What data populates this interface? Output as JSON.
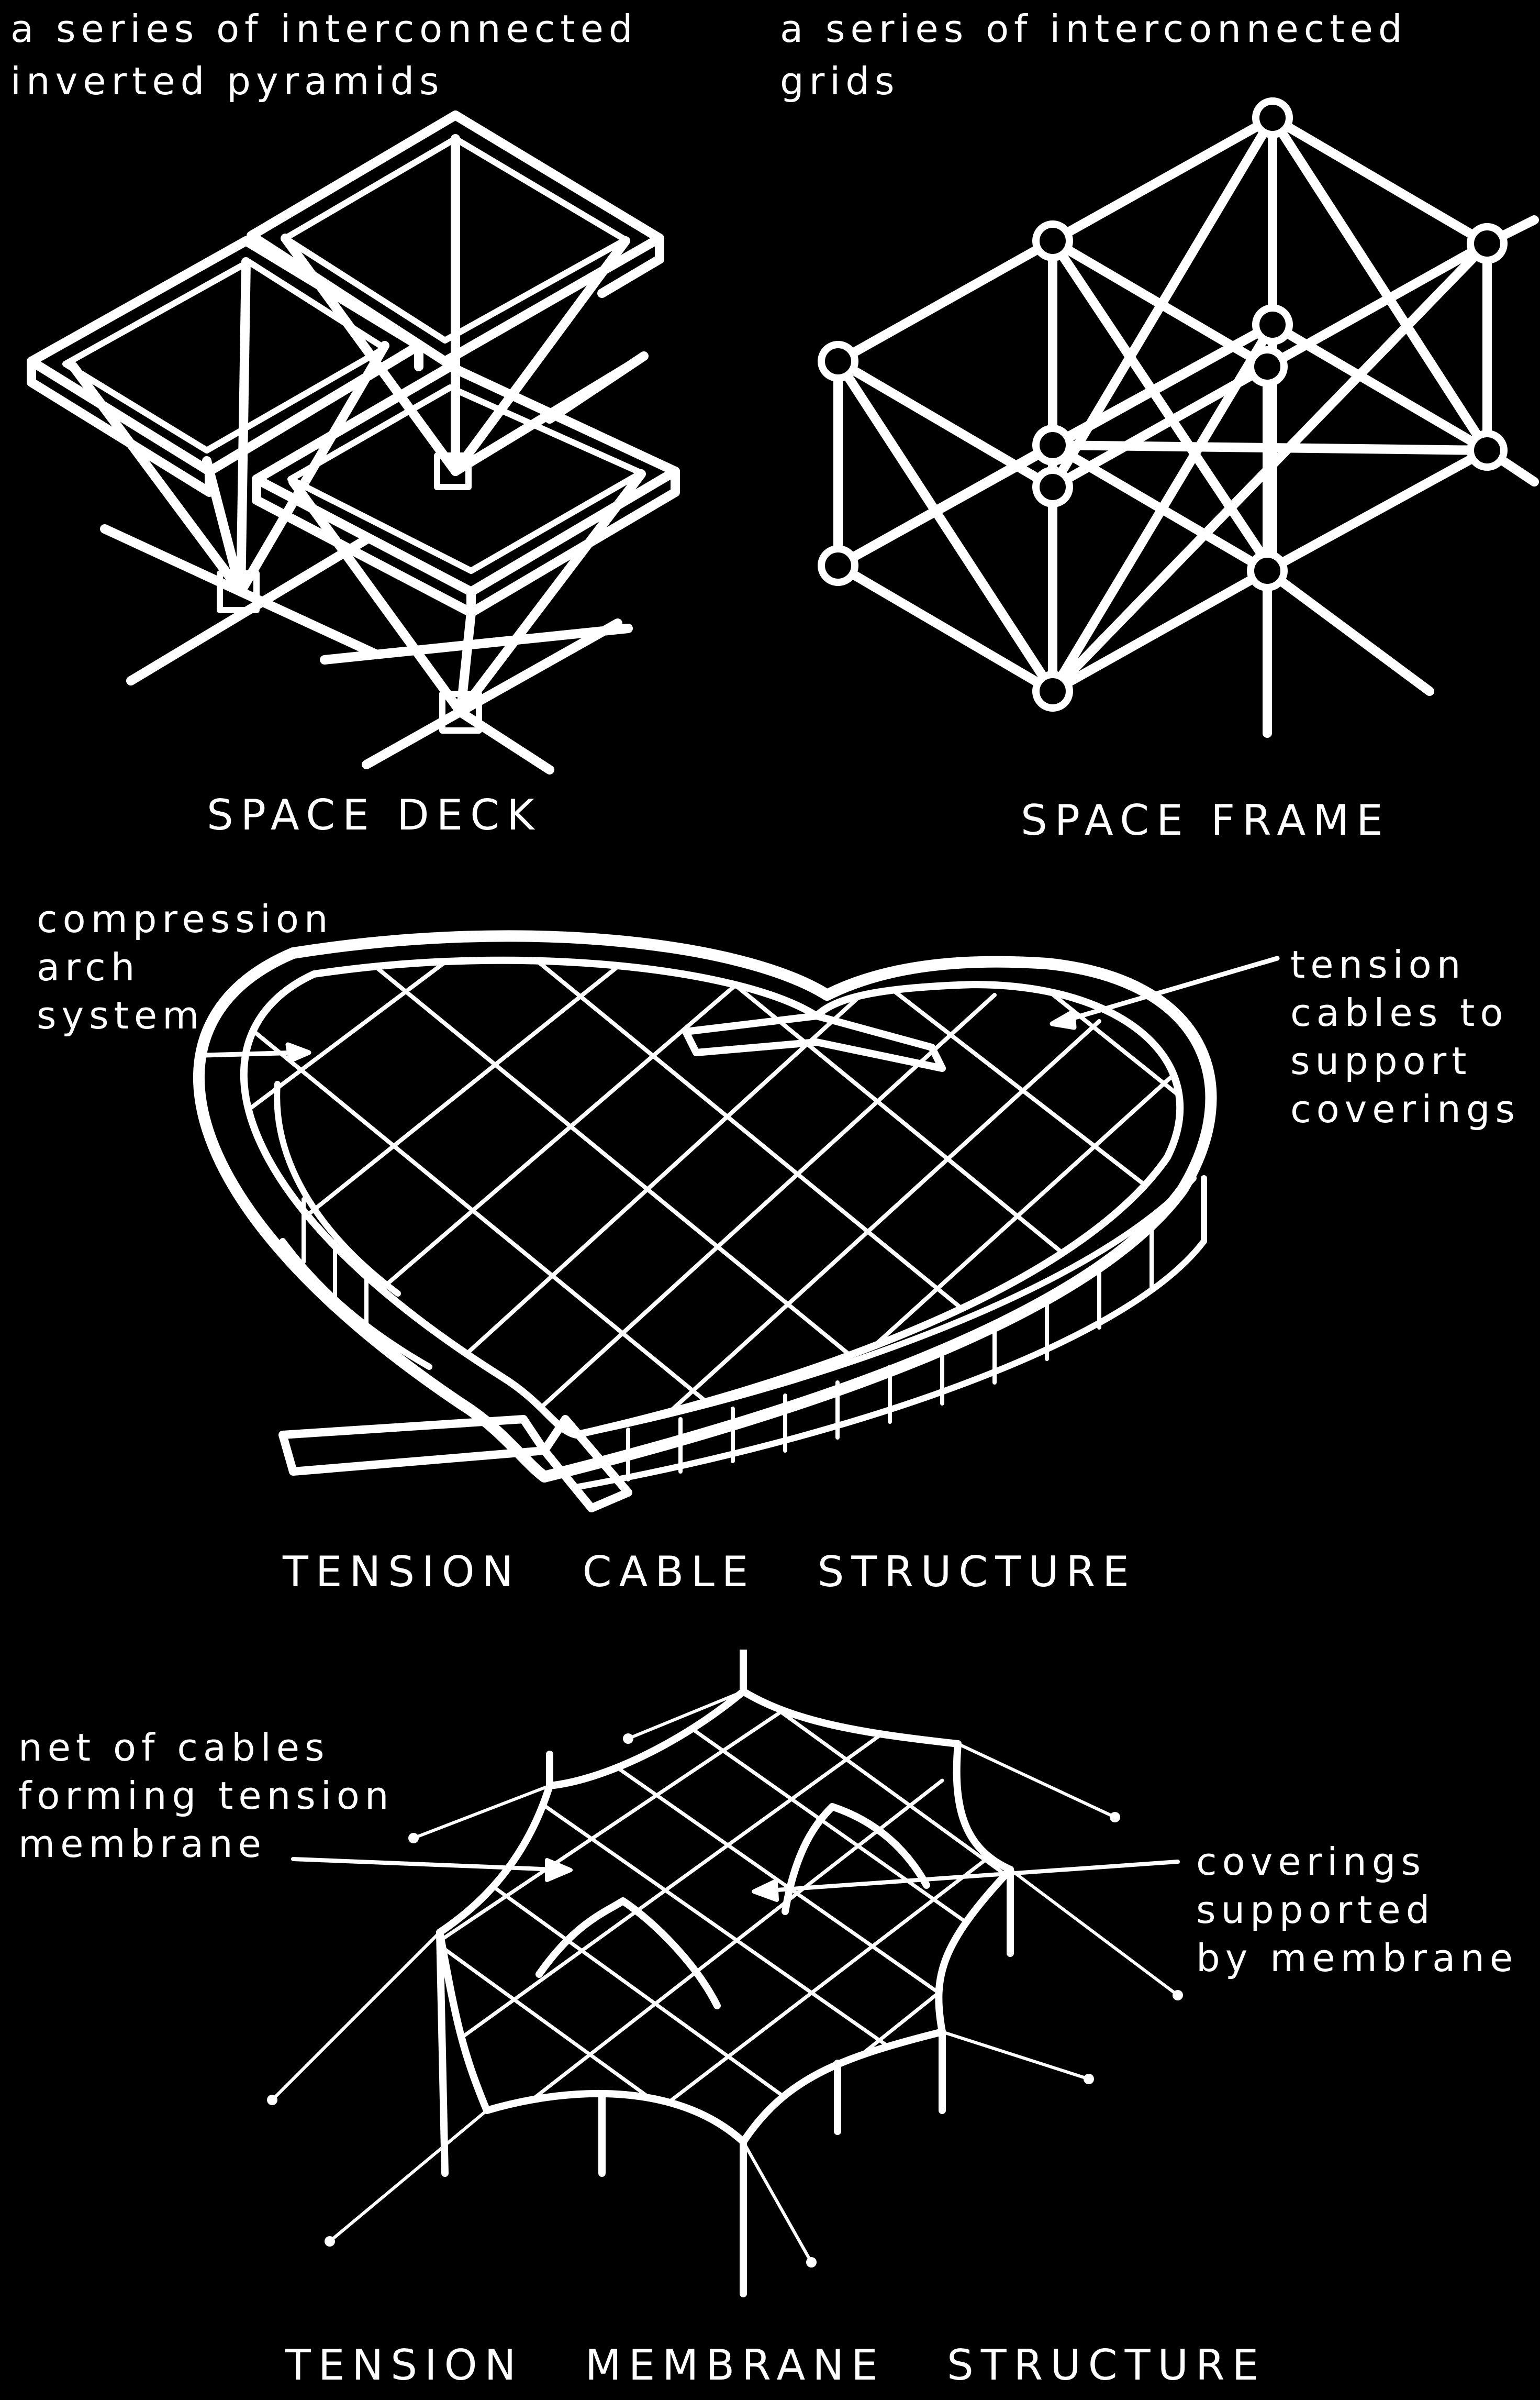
{
  "space_deck": {
    "note_line1": "a series of interconnected",
    "note_line2": "inverted pyramids",
    "title": "SPACE DECK"
  },
  "space_frame": {
    "note_line1": "a series of interconnected",
    "note_line2": "grids",
    "title": "SPACE FRAME"
  },
  "tension_cable": {
    "left_note_line1": "compression",
    "left_note_line2": "arch",
    "left_note_line3": "system",
    "right_note_line1": "tension",
    "right_note_line2": "cables to",
    "right_note_line3": "support",
    "right_note_line4": "coverings",
    "title": "TENSION   CABLE   STRUCTURE"
  },
  "tension_membrane": {
    "left_note_line1": "net of cables",
    "left_note_line2": "forming tension",
    "left_note_line3": "membrane",
    "right_note_line1": "coverings",
    "right_note_line2": "supported",
    "right_note_line3": "by membrane",
    "title": "TENSION   MEMBRANE   STRUCTURE"
  },
  "colors": {
    "background": "#000000",
    "ink": "#ffffff"
  }
}
